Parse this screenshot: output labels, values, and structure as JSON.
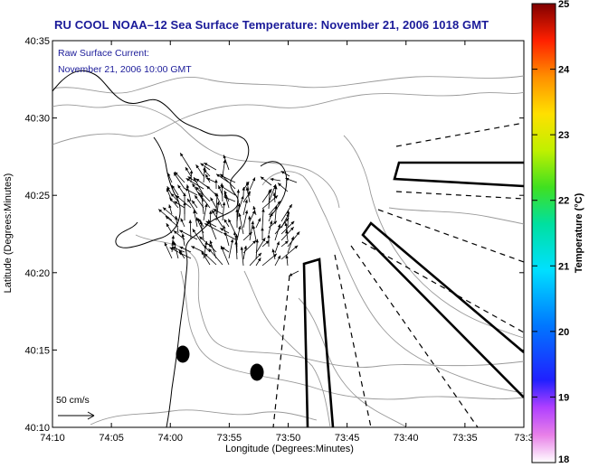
{
  "title": "RU COOL  NOAA–12  Sea Surface Temperature:  November 21, 2006 1018 GMT",
  "current_note": {
    "line1": "Raw Surface Current:",
    "line2": "November 21, 2006 10:00 GMT"
  },
  "axes": {
    "xlabel": "Longitude (Degrees:Minutes)",
    "ylabel": "Latitude (Degrees:Minutes)",
    "x_ticks": [
      "74:10",
      "74:05",
      "74:00",
      "73:55",
      "73:50",
      "73:45",
      "73:40",
      "73:35",
      "73:3"
    ],
    "y_ticks": [
      "40:35",
      "40:30",
      "40:25",
      "40:20",
      "40:15",
      "40:10"
    ]
  },
  "scale": {
    "label": "50 cm/s"
  },
  "colorbar": {
    "label": "Temperature (°C)",
    "ticks": [
      "25",
      "24",
      "23",
      "22",
      "21",
      "20",
      "19",
      "18"
    ],
    "min": 18,
    "max": 25
  },
  "colors": {
    "title": "#1a1a99",
    "coast": "#000000",
    "bathymetry": "#999999",
    "vectors": "#000000"
  }
}
